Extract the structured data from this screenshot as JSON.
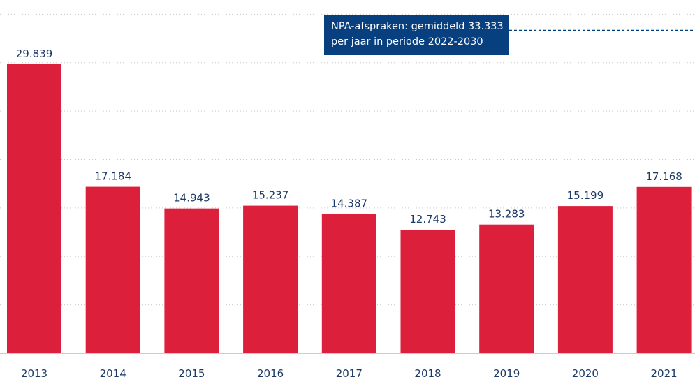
{
  "chart_data": {
    "type": "bar",
    "categories": [
      "2013",
      "2014",
      "2015",
      "2016",
      "2017",
      "2018",
      "2019",
      "2020",
      "2021"
    ],
    "values": [
      29839,
      17184,
      14943,
      15237,
      14387,
      12743,
      13283,
      15199,
      17168
    ],
    "value_labels": [
      "29.839",
      "17.184",
      "14.943",
      "15.237",
      "14.387",
      "12.743",
      "13.283",
      "15.199",
      "17.168"
    ],
    "title": "",
    "xlabel": "",
    "ylabel": "",
    "ylim": [
      0,
      35000
    ],
    "grid": true,
    "reference_line": {
      "value": 33333,
      "label_lines": [
        "NPA-afspraken: gemiddeld 33.333",
        "per jaar in periode 2022-2030"
      ]
    },
    "colors": {
      "bar": "#dc1f3b",
      "annotation": "#073f7f",
      "text": "#1c3a66"
    }
  }
}
